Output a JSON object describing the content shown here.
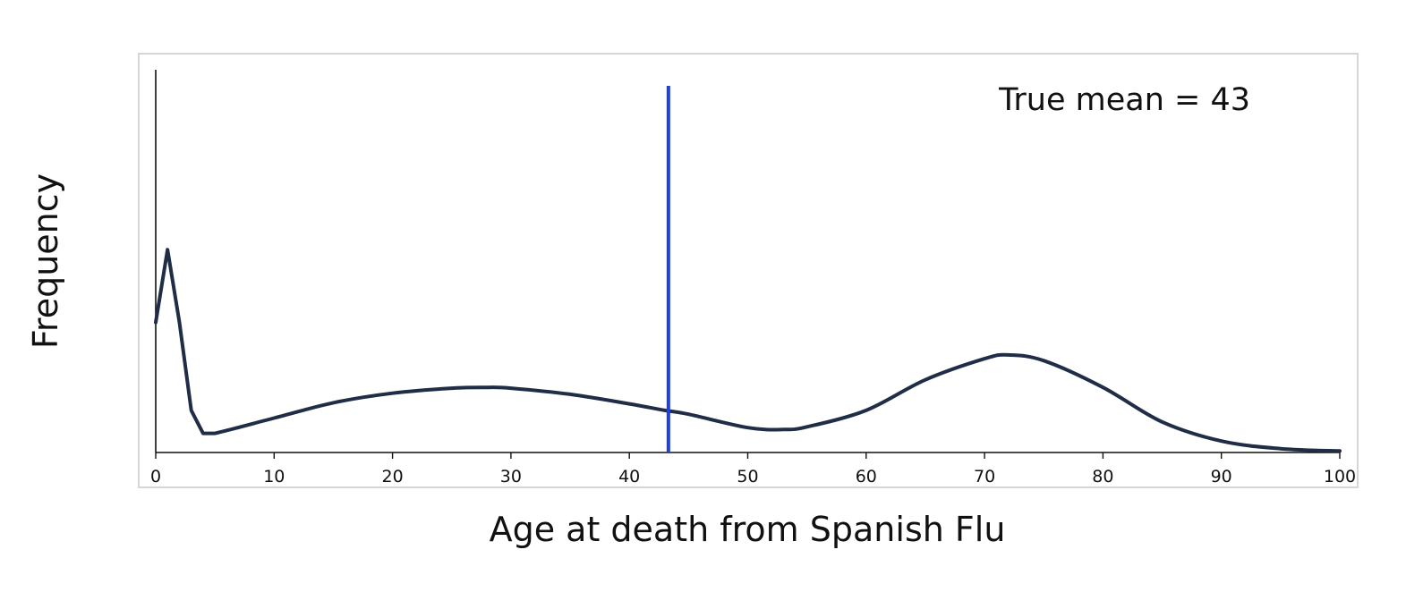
{
  "chart_data": {
    "type": "line",
    "title": "",
    "xlabel": "Age at death from Spanish Flu",
    "ylabel": "Frequency",
    "xlim": [
      0,
      100
    ],
    "ylim": [
      0,
      1
    ],
    "grid": false,
    "x_ticks": [
      "0",
      "10",
      "20",
      "30",
      "40",
      "50",
      "60",
      "70",
      "80",
      "90",
      "100"
    ],
    "y_ticks": [],
    "colors": {
      "curve": "#1f2d47",
      "mean_line": "#1f3fe0",
      "frame": "#d6d6d6"
    },
    "series": [
      {
        "x": [
          0,
          1,
          2,
          3,
          4,
          5,
          10,
          15,
          20,
          25,
          28,
          30,
          35,
          40,
          43,
          45,
          50,
          53,
          55,
          60,
          65,
          70,
          72,
          75,
          80,
          85,
          90,
          95,
          100
        ],
        "y": [
          0.34,
          0.53,
          0.34,
          0.11,
          0.05,
          0.05,
          0.09,
          0.13,
          0.155,
          0.168,
          0.17,
          0.168,
          0.152,
          0.127,
          0.11,
          0.1,
          0.065,
          0.06,
          0.067,
          0.11,
          0.19,
          0.245,
          0.255,
          0.24,
          0.17,
          0.08,
          0.03,
          0.01,
          0.004
        ]
      }
    ],
    "reference_lines": [
      {
        "type": "vertical",
        "x": 43.3,
        "label": "True mean = 43"
      }
    ]
  }
}
